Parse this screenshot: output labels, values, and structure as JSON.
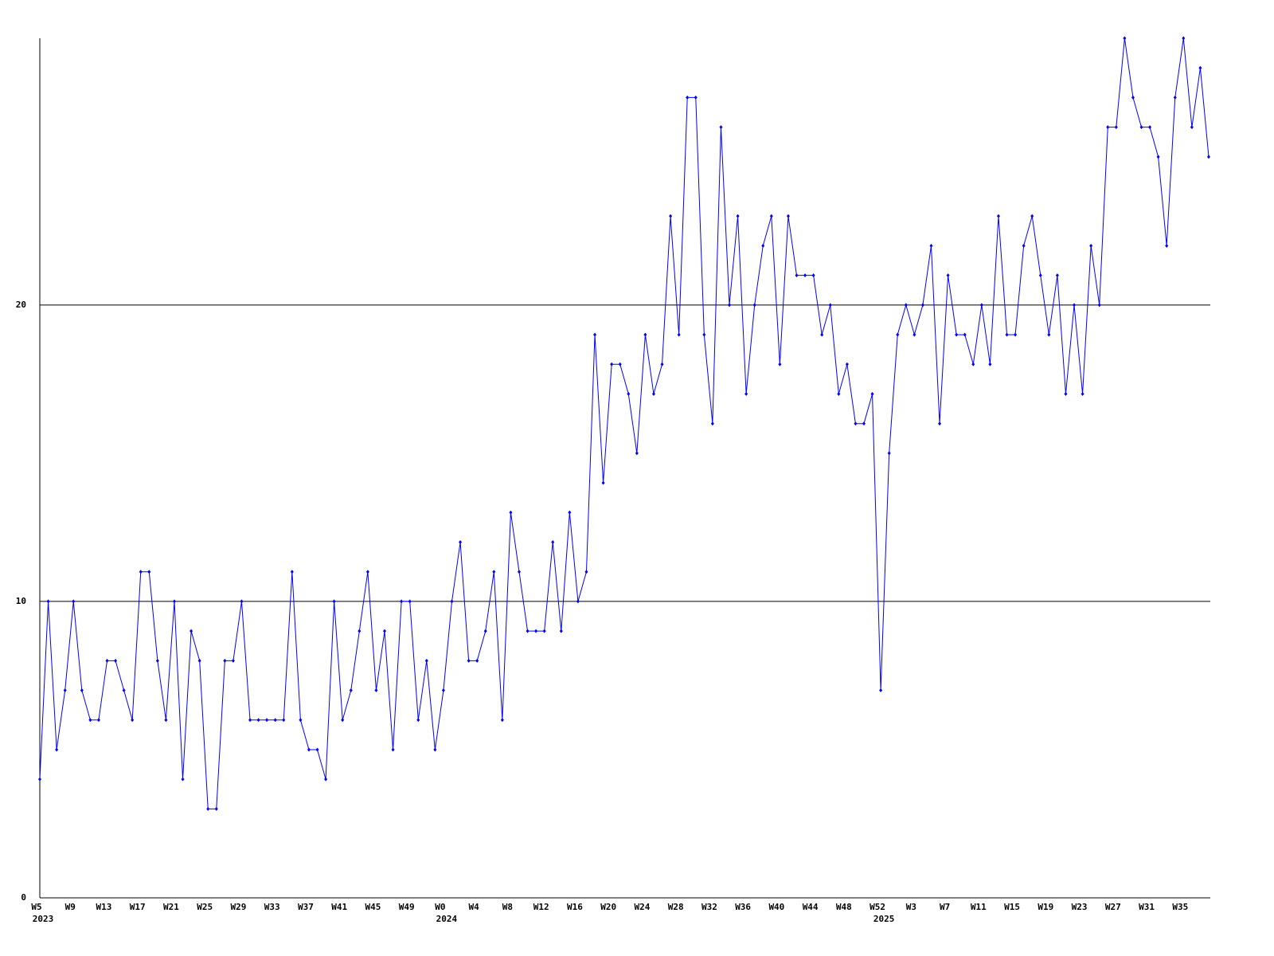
{
  "chart_data": {
    "type": "line",
    "color": "#0000ff",
    "grid": true,
    "ylim": [
      0,
      29
    ],
    "yticks": [
      0,
      10,
      20
    ],
    "categories": [
      "W5",
      null,
      null,
      null,
      "W9",
      null,
      null,
      null,
      "W13",
      null,
      null,
      null,
      "W17",
      null,
      null,
      null,
      "W21",
      null,
      null,
      null,
      "W25",
      null,
      null,
      null,
      "W29",
      null,
      null,
      null,
      "W33",
      null,
      null,
      null,
      "W37",
      null,
      null,
      null,
      "W41",
      null,
      null,
      null,
      "W45",
      null,
      null,
      null,
      "W49",
      null,
      null,
      null,
      "W0",
      null,
      null,
      null,
      "W4",
      null,
      null,
      null,
      "W8",
      null,
      null,
      null,
      "W12",
      null,
      null,
      null,
      "W16",
      null,
      null,
      null,
      "W20",
      null,
      null,
      null,
      "W24",
      null,
      null,
      null,
      "W28",
      null,
      null,
      null,
      "W32",
      null,
      null,
      null,
      "W36",
      null,
      null,
      null,
      "W40",
      null,
      null,
      null,
      "W44",
      null,
      null,
      null,
      "W48",
      null,
      null,
      null,
      "W52",
      null,
      null,
      null,
      "W3",
      null,
      null,
      null,
      "W7",
      null,
      null,
      null,
      "W11",
      null,
      null,
      null,
      "W15",
      null,
      null,
      null,
      "W19",
      null,
      null,
      null,
      "W23",
      null,
      null,
      null,
      "W27",
      null,
      null,
      null,
      "W31",
      null,
      null,
      null,
      "W35",
      null,
      null,
      null
    ],
    "years": [
      "2023",
      null,
      null,
      null,
      null,
      null,
      null,
      null,
      null,
      null,
      null,
      null,
      null,
      null,
      null,
      null,
      null,
      null,
      null,
      null,
      null,
      null,
      null,
      null,
      null,
      null,
      null,
      null,
      null,
      null,
      null,
      null,
      null,
      null,
      null,
      null,
      null,
      null,
      null,
      null,
      null,
      null,
      null,
      null,
      null,
      null,
      null,
      null,
      "2024",
      null,
      null,
      null,
      null,
      null,
      null,
      null,
      null,
      null,
      null,
      null,
      null,
      null,
      null,
      null,
      null,
      null,
      null,
      null,
      null,
      null,
      null,
      null,
      null,
      null,
      null,
      null,
      null,
      null,
      null,
      null,
      null,
      null,
      null,
      null,
      null,
      null,
      null,
      null,
      null,
      null,
      null,
      null,
      null,
      null,
      null,
      null,
      null,
      null,
      null,
      null,
      "2025",
      null,
      null,
      null,
      null,
      null,
      null,
      null,
      null,
      null,
      null,
      null,
      null,
      null,
      null,
      null,
      null,
      null,
      null,
      null,
      null,
      null,
      null,
      null,
      null,
      null,
      null,
      null,
      null,
      null,
      null,
      null,
      null,
      null,
      null,
      null,
      null,
      null
    ],
    "values": [
      4,
      10,
      5,
      7,
      10,
      7,
      6,
      6,
      8,
      8,
      7,
      6,
      11,
      11,
      8,
      6,
      10,
      4,
      9,
      8,
      3,
      3,
      8,
      8,
      10,
      6,
      6,
      6,
      6,
      6,
      11,
      6,
      5,
      5,
      4,
      10,
      6,
      7,
      9,
      11,
      7,
      9,
      5,
      10,
      10,
      6,
      8,
      5,
      7,
      10,
      12,
      8,
      8,
      9,
      11,
      6,
      13,
      11,
      9,
      9,
      9,
      12,
      9,
      13,
      10,
      11,
      19,
      14,
      18,
      18,
      17,
      15,
      19,
      17,
      18,
      23,
      19,
      27,
      27,
      19,
      16,
      26,
      20,
      23,
      17,
      20,
      22,
      23,
      18,
      23,
      21,
      21,
      21,
      19,
      20,
      17,
      18,
      16,
      16,
      17,
      7,
      15,
      19,
      20,
      19,
      20,
      22,
      16,
      21,
      19,
      19,
      18,
      20,
      18,
      23,
      19,
      19,
      22,
      23,
      21,
      19,
      21,
      17,
      20,
      17,
      22,
      20,
      26,
      26,
      29,
      27,
      26,
      26,
      25,
      22,
      27,
      29,
      26,
      28,
      25
    ]
  }
}
